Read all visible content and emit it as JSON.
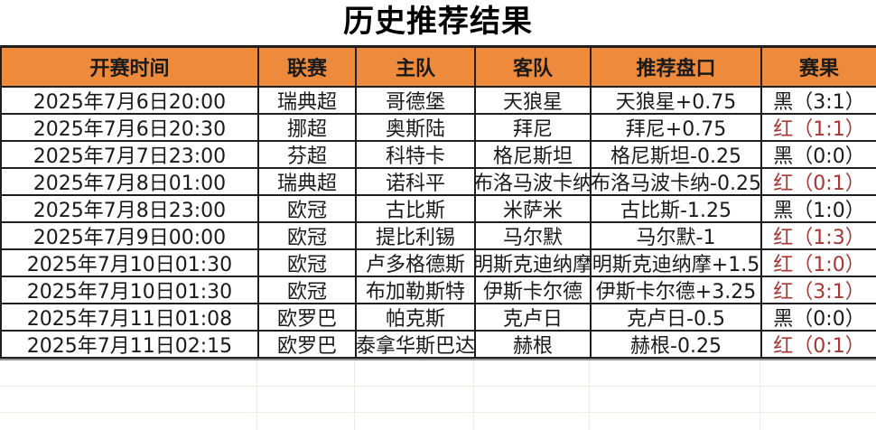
{
  "title": "历史推荐结果",
  "table": {
    "headers": [
      "开赛时间",
      "联赛",
      "主队",
      "客队",
      "推荐盘口",
      "赛果"
    ],
    "header_keys": [
      "time",
      "league",
      "home",
      "away",
      "handicap",
      "result"
    ],
    "rows": [
      {
        "time": "2025年7月6日20:00",
        "league": "瑞典超",
        "home": "哥德堡",
        "away": "天狼星",
        "handicap": "天狼星+0.75",
        "result": "黑（3:1）",
        "result_color": "black"
      },
      {
        "time": "2025年7月6日20:30",
        "league": "挪超",
        "home": "奥斯陆",
        "away": "拜尼",
        "handicap": "拜尼+0.75",
        "result": "红（1:1）",
        "result_color": "red"
      },
      {
        "time": "2025年7月7日23:00",
        "league": "芬超",
        "home": "科特卡",
        "away": "格尼斯坦",
        "handicap": "格尼斯坦-0.25",
        "result": "黑（0:0）",
        "result_color": "black"
      },
      {
        "time": "2025年7月8日01:00",
        "league": "瑞典超",
        "home": "诺科平",
        "away": "布洛马波卡纳",
        "handicap": "布洛马波卡纳-0.25",
        "result": "红（0:1）",
        "result_color": "red"
      },
      {
        "time": "2025年7月8日23:00",
        "league": "欧冠",
        "home": "古比斯",
        "away": "米萨米",
        "handicap": "古比斯-1.25",
        "result": "黑（1:0）",
        "result_color": "black"
      },
      {
        "time": "2025年7月9日00:00",
        "league": "欧冠",
        "home": "提比利锡",
        "away": "马尔默",
        "handicap": "马尔默-1",
        "result": "红（1:3）",
        "result_color": "red"
      },
      {
        "time": "2025年7月10日01:30",
        "league": "欧冠",
        "home": "卢多格德斯",
        "away": "明斯克迪纳摩",
        "handicap": "明斯克迪纳摩+1.5",
        "result": "红（1:0）",
        "result_color": "red"
      },
      {
        "time": "2025年7月10日01:30",
        "league": "欧冠",
        "home": "布加勒斯特",
        "away": "伊斯卡尔德",
        "handicap": "伊斯卡尔德+3.25",
        "result": "红（3:1）",
        "result_color": "red"
      },
      {
        "time": "2025年7月11日01:08",
        "league": "欧罗巴",
        "home": "帕克斯",
        "away": "克卢日",
        "handicap": "克卢日-0.5",
        "result": "黑（0:0）",
        "result_color": "black"
      },
      {
        "time": "2025年7月11日02:15",
        "league": "欧罗巴",
        "home": "泰拿华斯巴达",
        "away": "赫根",
        "handicap": "赫根-0.25",
        "result": "红（0:1）",
        "result_color": "red"
      }
    ]
  },
  "empty_rows_count": 3,
  "colors": {
    "header_bg": "#ED8A3C",
    "border_dark": "#1E1E1E",
    "text_black": "#1A1A1A",
    "result_red": "#A63732",
    "divider_gray": "#8F8F8F",
    "empty_line": "#F3EAE8",
    "empty_line_v": "#EFEAE8",
    "page_bg": "#FFFFFF"
  }
}
